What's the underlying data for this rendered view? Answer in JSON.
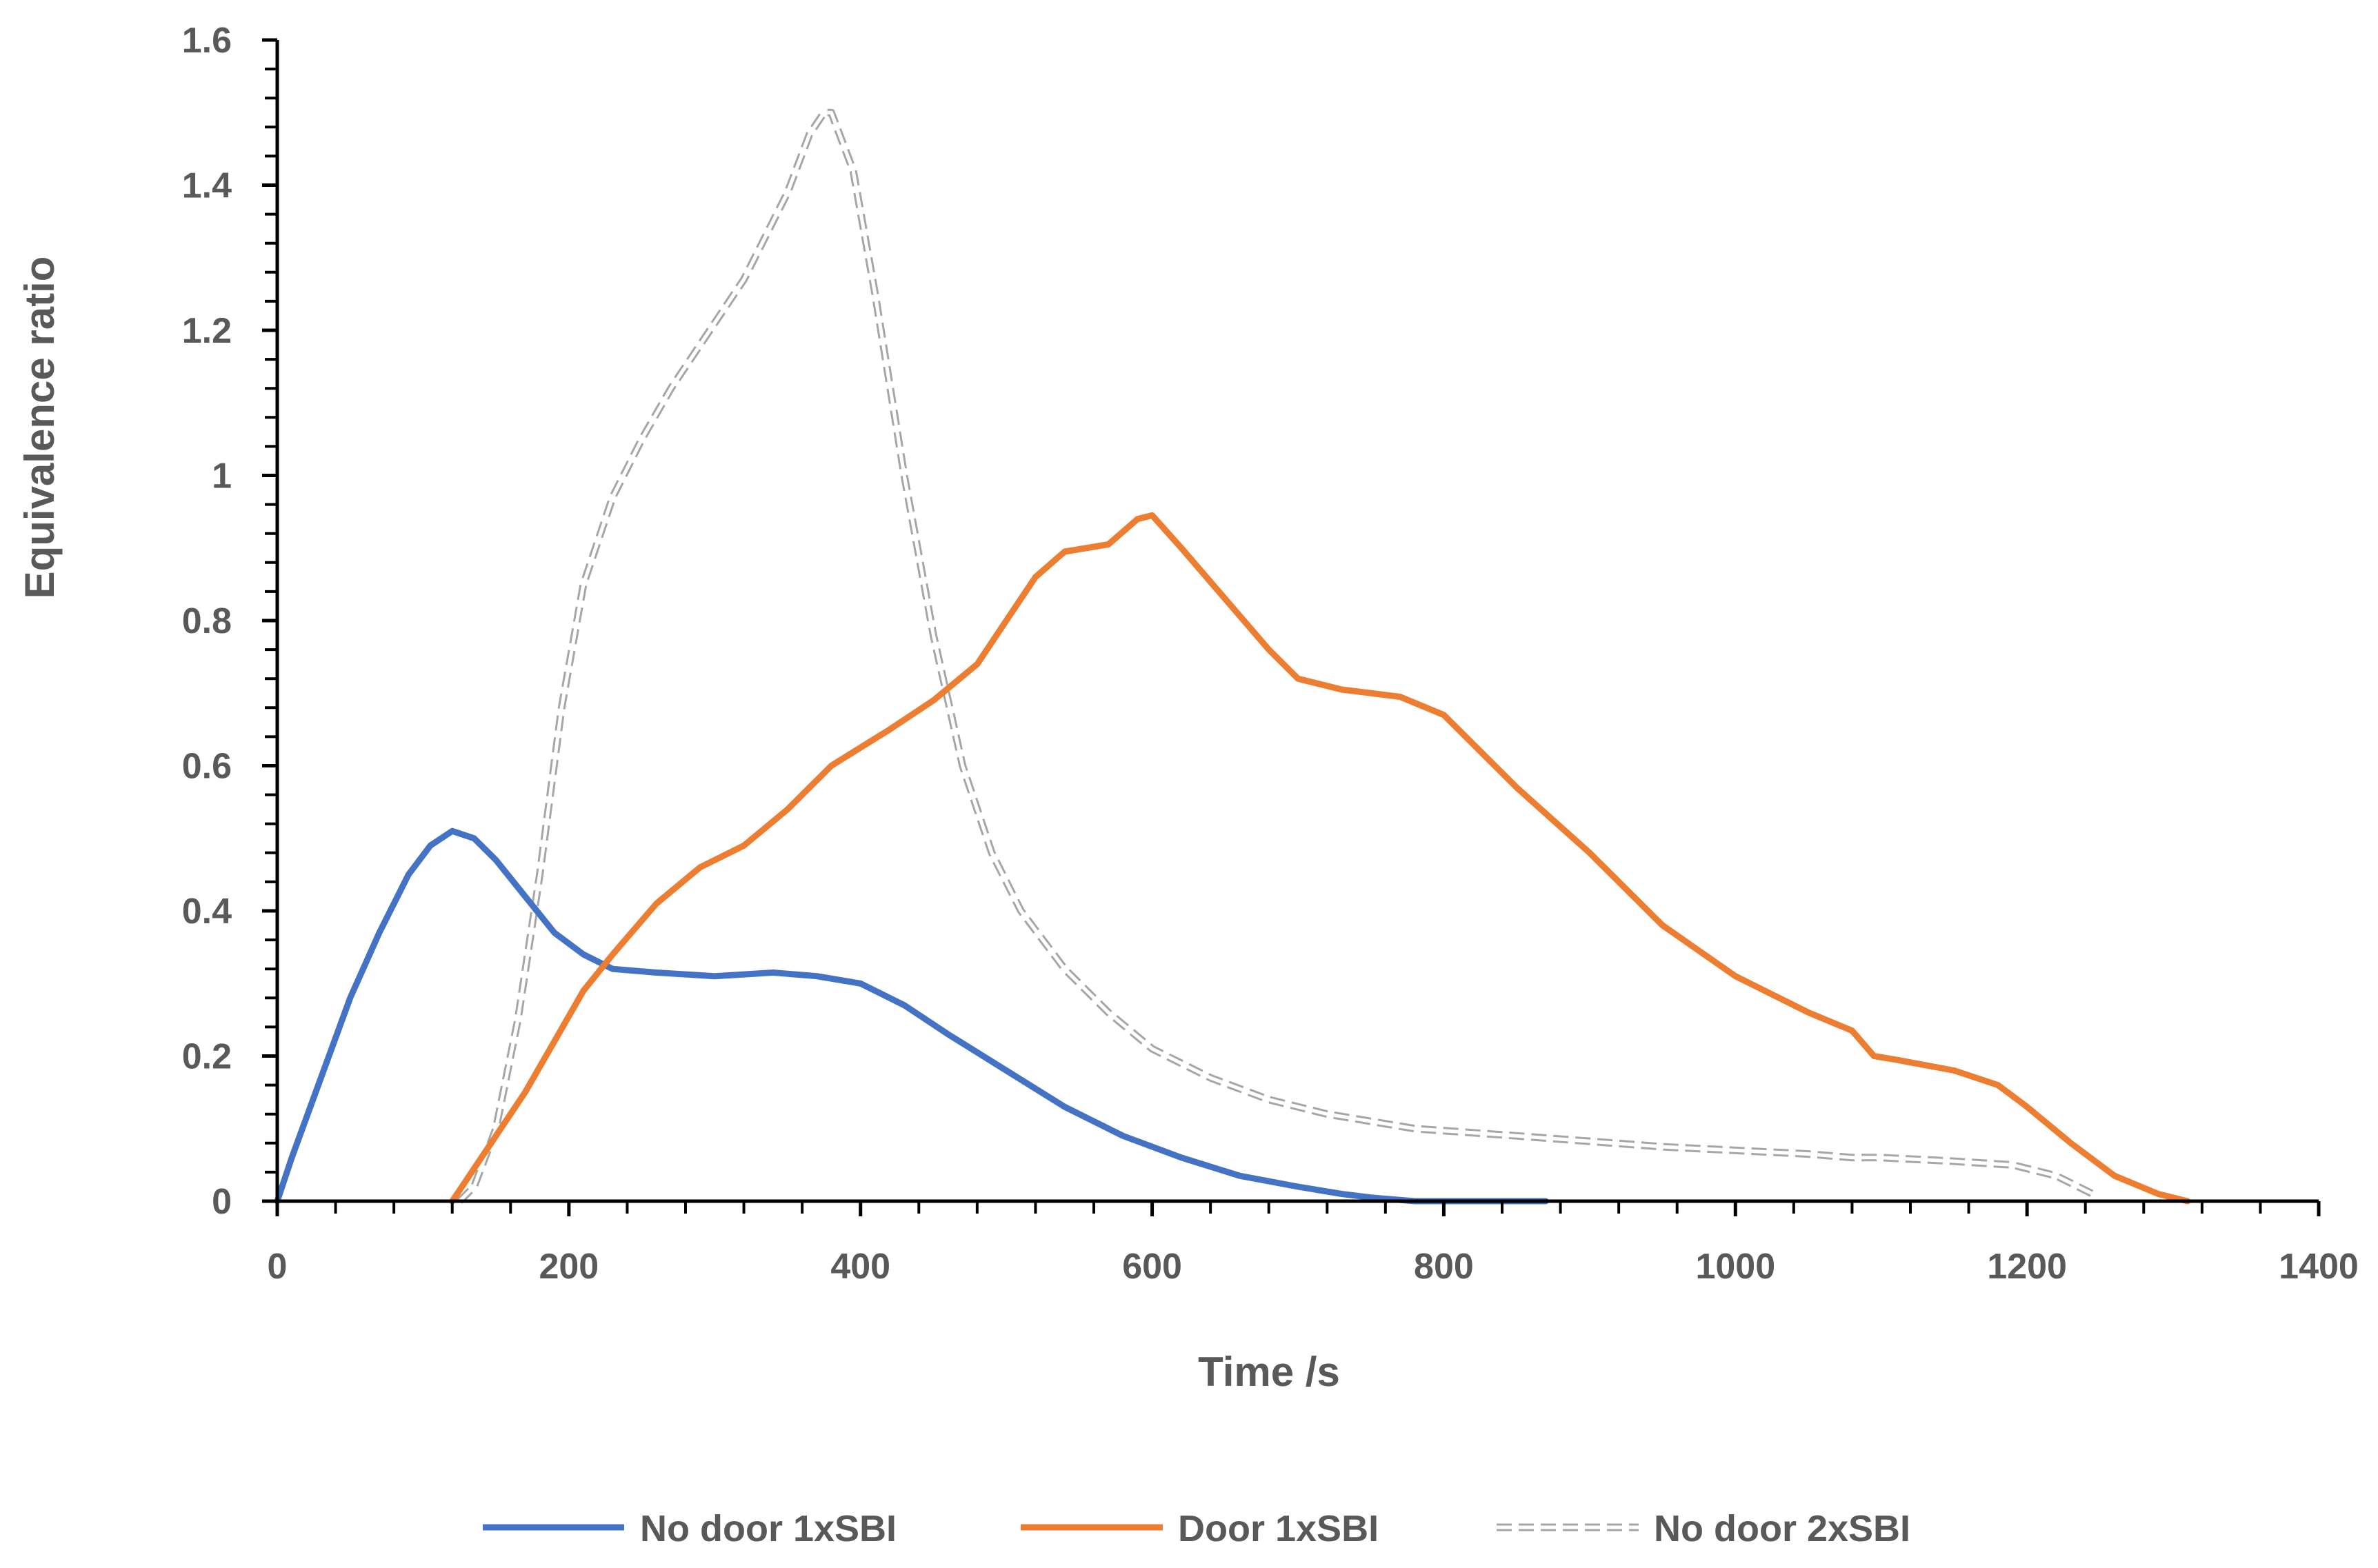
{
  "chart_data": {
    "type": "line",
    "xlabel": "Time /s",
    "ylabel": "Equivalence ratio",
    "xlim": [
      0,
      1400
    ],
    "ylim": [
      0,
      1.6
    ],
    "xticks": [
      "0",
      "200",
      "400",
      "600",
      "800",
      "1000",
      "1200",
      "1400"
    ],
    "yticks": [
      "0",
      "0.2",
      "0.4",
      "0.6",
      "0.8",
      "1",
      "1.2",
      "1.4",
      "1.6"
    ],
    "grid": false,
    "legend_position": "bottom",
    "series": [
      {
        "name": "No door 1xSBI",
        "color": "#4472C4",
        "dash": "solid",
        "x": [
          0,
          10,
          30,
          50,
          70,
          90,
          105,
          120,
          135,
          150,
          170,
          190,
          210,
          230,
          260,
          300,
          340,
          370,
          400,
          430,
          460,
          500,
          540,
          580,
          620,
          660,
          700,
          730,
          750,
          780,
          820,
          870
        ],
        "y": [
          0,
          0.06,
          0.17,
          0.28,
          0.37,
          0.45,
          0.49,
          0.51,
          0.5,
          0.47,
          0.42,
          0.37,
          0.34,
          0.32,
          0.315,
          0.31,
          0.315,
          0.31,
          0.3,
          0.27,
          0.23,
          0.18,
          0.13,
          0.09,
          0.06,
          0.035,
          0.02,
          0.01,
          0.005,
          0.0,
          0.0,
          0.0
        ]
      },
      {
        "name": "Door 1xSBI",
        "color": "#ED7D31",
        "dash": "solid",
        "x": [
          120,
          130,
          150,
          170,
          190,
          210,
          230,
          260,
          290,
          320,
          350,
          380,
          420,
          450,
          480,
          500,
          520,
          540,
          570,
          590,
          600,
          620,
          650,
          680,
          700,
          730,
          770,
          800,
          850,
          900,
          950,
          1000,
          1050,
          1080,
          1095,
          1110,
          1150,
          1180,
          1200,
          1230,
          1260,
          1290,
          1310
        ],
        "y": [
          0,
          0.03,
          0.09,
          0.15,
          0.22,
          0.29,
          0.34,
          0.41,
          0.46,
          0.49,
          0.54,
          0.6,
          0.65,
          0.69,
          0.74,
          0.8,
          0.86,
          0.895,
          0.905,
          0.94,
          0.945,
          0.9,
          0.83,
          0.76,
          0.72,
          0.705,
          0.695,
          0.67,
          0.57,
          0.48,
          0.38,
          0.31,
          0.26,
          0.235,
          0.2,
          0.195,
          0.18,
          0.16,
          0.13,
          0.08,
          0.035,
          0.01,
          0.0
        ]
      },
      {
        "name": "No door 2xSBI",
        "color": "#A6A6A6",
        "dash": "dashed",
        "x": [
          125,
          135,
          150,
          165,
          180,
          195,
          210,
          230,
          250,
          270,
          290,
          320,
          350,
          365,
          375,
          380,
          395,
          410,
          430,
          450,
          470,
          490,
          510,
          540,
          570,
          600,
          640,
          680,
          720,
          780,
          850,
          950,
          1050,
          1080,
          1100,
          1150,
          1190,
          1220,
          1245
        ],
        "y": [
          0,
          0.02,
          0.1,
          0.25,
          0.45,
          0.68,
          0.85,
          0.97,
          1.05,
          1.12,
          1.18,
          1.27,
          1.39,
          1.47,
          1.5,
          1.5,
          1.42,
          1.25,
          1.0,
          0.78,
          0.6,
          0.48,
          0.4,
          0.32,
          0.26,
          0.21,
          0.17,
          0.14,
          0.12,
          0.1,
          0.09,
          0.075,
          0.065,
          0.06,
          0.06,
          0.055,
          0.05,
          0.035,
          0.01
        ]
      }
    ]
  }
}
